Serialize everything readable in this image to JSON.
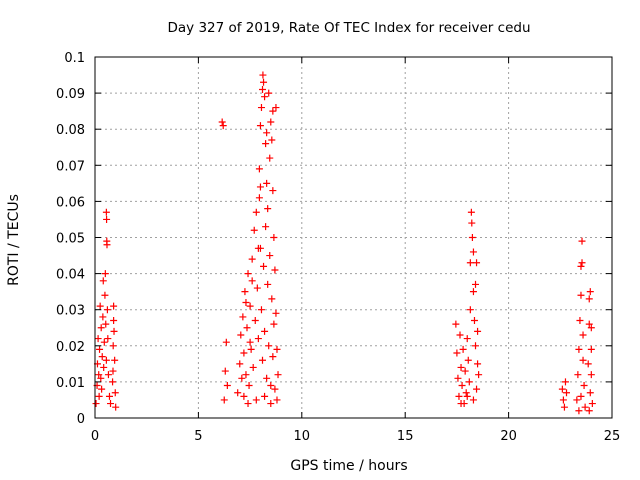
{
  "chart_data": {
    "type": "scatter",
    "title": "Day 327 of 2019, Rate Of TEC Index for receiver cedu",
    "xlabel": "GPS time / hours",
    "ylabel": "ROTI / TECUs",
    "xlim": [
      0,
      25
    ],
    "ylim": [
      0,
      0.1
    ],
    "xticks": [
      0,
      5,
      10,
      15,
      20,
      25
    ],
    "yticks": [
      0,
      0.01,
      0.02,
      0.03,
      0.04,
      0.05,
      0.06,
      0.07,
      0.08,
      0.09,
      0.1
    ],
    "xtick_labels": [
      "0",
      "5",
      "10",
      "15",
      "20",
      "25"
    ],
    "ytick_labels": [
      "0",
      "0.01",
      "0.02",
      "0.03",
      "0.04",
      "0.05",
      "0.06",
      "0.07",
      "0.08",
      "0.09",
      "0.1"
    ],
    "grid": true,
    "marker": "+",
    "marker_color": "#ff0000",
    "series": [
      {
        "name": "ROTI",
        "points": [
          [
            0.05,
            0.004
          ],
          [
            0.1,
            0.009
          ],
          [
            0.12,
            0.015
          ],
          [
            0.15,
            0.022
          ],
          [
            0.18,
            0.012
          ],
          [
            0.2,
            0.006
          ],
          [
            0.22,
            0.019
          ],
          [
            0.25,
            0.031
          ],
          [
            0.28,
            0.011
          ],
          [
            0.3,
            0.025
          ],
          [
            0.32,
            0.008
          ],
          [
            0.35,
            0.017
          ],
          [
            0.38,
            0.028
          ],
          [
            0.4,
            0.038
          ],
          [
            0.42,
            0.014
          ],
          [
            0.45,
            0.021
          ],
          [
            0.48,
            0.034
          ],
          [
            0.5,
            0.04
          ],
          [
            0.52,
            0.026
          ],
          [
            0.55,
            0.016
          ],
          [
            0.55,
            0.057
          ],
          [
            0.56,
            0.055
          ],
          [
            0.57,
            0.049
          ],
          [
            0.58,
            0.048
          ],
          [
            0.6,
            0.03
          ],
          [
            0.62,
            0.022
          ],
          [
            0.65,
            0.012
          ],
          [
            0.7,
            0.006
          ],
          [
            0.75,
            0.004
          ],
          [
            0.85,
            0.01
          ],
          [
            0.88,
            0.02
          ],
          [
            0.9,
            0.031
          ],
          [
            0.92,
            0.024
          ],
          [
            0.95,
            0.016
          ],
          [
            0.98,
            0.007
          ],
          [
            1.0,
            0.003
          ],
          [
            0.9,
            0.027
          ],
          [
            0.87,
            0.013
          ],
          [
            6.15,
            0.082
          ],
          [
            6.2,
            0.081
          ],
          [
            6.25,
            0.005
          ],
          [
            6.3,
            0.013
          ],
          [
            6.35,
            0.021
          ],
          [
            6.4,
            0.009
          ],
          [
            6.9,
            0.007
          ],
          [
            7.0,
            0.015
          ],
          [
            7.05,
            0.023
          ],
          [
            7.1,
            0.011
          ],
          [
            7.15,
            0.028
          ],
          [
            7.2,
            0.018
          ],
          [
            7.25,
            0.035
          ],
          [
            7.3,
            0.012
          ],
          [
            7.35,
            0.025
          ],
          [
            7.4,
            0.04
          ],
          [
            7.45,
            0.009
          ],
          [
            7.5,
            0.031
          ],
          [
            7.55,
            0.019
          ],
          [
            7.6,
            0.044
          ],
          [
            7.65,
            0.014
          ],
          [
            7.7,
            0.052
          ],
          [
            7.75,
            0.027
          ],
          [
            7.8,
            0.057
          ],
          [
            7.85,
            0.036
          ],
          [
            7.9,
            0.022
          ],
          [
            7.95,
            0.061
          ],
          [
            7.95,
            0.069
          ],
          [
            8.0,
            0.081
          ],
          [
            8.0,
            0.047
          ],
          [
            8.05,
            0.086
          ],
          [
            8.05,
            0.03
          ],
          [
            8.1,
            0.091
          ],
          [
            8.1,
            0.016
          ],
          [
            8.12,
            0.095
          ],
          [
            8.15,
            0.093
          ],
          [
            8.15,
            0.042
          ],
          [
            8.2,
            0.089
          ],
          [
            8.2,
            0.024
          ],
          [
            8.25,
            0.076
          ],
          [
            8.25,
            0.053
          ],
          [
            8.3,
            0.065
          ],
          [
            8.3,
            0.011
          ],
          [
            8.35,
            0.058
          ],
          [
            8.35,
            0.037
          ],
          [
            8.4,
            0.09
          ],
          [
            8.4,
            0.02
          ],
          [
            8.45,
            0.072
          ],
          [
            8.45,
            0.045
          ],
          [
            8.5,
            0.082
          ],
          [
            8.5,
            0.009
          ],
          [
            8.55,
            0.077
          ],
          [
            8.55,
            0.033
          ],
          [
            8.6,
            0.063
          ],
          [
            8.6,
            0.017
          ],
          [
            8.65,
            0.05
          ],
          [
            8.65,
            0.026
          ],
          [
            8.7,
            0.041
          ],
          [
            8.7,
            0.008
          ],
          [
            8.75,
            0.086
          ],
          [
            8.75,
            0.029
          ],
          [
            8.8,
            0.019
          ],
          [
            8.85,
            0.012
          ],
          [
            8.6,
            0.085
          ],
          [
            8.3,
            0.079
          ],
          [
            8.0,
            0.064
          ],
          [
            7.9,
            0.047
          ],
          [
            7.6,
            0.038
          ],
          [
            7.3,
            0.032
          ],
          [
            7.2,
            0.006
          ],
          [
            7.4,
            0.004
          ],
          [
            7.8,
            0.005
          ],
          [
            8.2,
            0.006
          ],
          [
            8.5,
            0.004
          ],
          [
            8.8,
            0.005
          ],
          [
            7.5,
            0.021
          ],
          [
            17.45,
            0.026
          ],
          [
            17.5,
            0.018
          ],
          [
            17.55,
            0.011
          ],
          [
            17.6,
            0.006
          ],
          [
            17.65,
            0.023
          ],
          [
            17.7,
            0.014
          ],
          [
            17.75,
            0.009
          ],
          [
            17.8,
            0.019
          ],
          [
            17.85,
            0.004
          ],
          [
            17.9,
            0.013
          ],
          [
            17.95,
            0.007
          ],
          [
            18.0,
            0.022
          ],
          [
            18.05,
            0.016
          ],
          [
            18.1,
            0.01
          ],
          [
            18.15,
            0.03
          ],
          [
            18.15,
            0.043
          ],
          [
            18.2,
            0.057
          ],
          [
            18.22,
            0.054
          ],
          [
            18.25,
            0.05
          ],
          [
            18.3,
            0.046
          ],
          [
            18.3,
            0.035
          ],
          [
            18.35,
            0.027
          ],
          [
            18.4,
            0.037
          ],
          [
            18.45,
            0.043
          ],
          [
            18.5,
            0.024
          ],
          [
            18.5,
            0.015
          ],
          [
            18.45,
            0.008
          ],
          [
            18.55,
            0.012
          ],
          [
            18.3,
            0.005
          ],
          [
            18.0,
            0.006
          ],
          [
            17.7,
            0.004
          ],
          [
            18.4,
            0.02
          ],
          [
            22.6,
            0.008
          ],
          [
            22.65,
            0.005
          ],
          [
            22.7,
            0.003
          ],
          [
            22.75,
            0.01
          ],
          [
            22.8,
            0.007
          ],
          [
            23.3,
            0.005
          ],
          [
            23.35,
            0.012
          ],
          [
            23.4,
            0.019
          ],
          [
            23.45,
            0.027
          ],
          [
            23.5,
            0.034
          ],
          [
            23.5,
            0.042
          ],
          [
            23.55,
            0.049
          ],
          [
            23.55,
            0.043
          ],
          [
            23.6,
            0.023
          ],
          [
            23.6,
            0.016
          ],
          [
            23.65,
            0.009
          ],
          [
            23.7,
            0.003
          ],
          [
            23.5,
            0.006
          ],
          [
            23.4,
            0.002
          ],
          [
            23.9,
            0.026
          ],
          [
            23.9,
            0.033
          ],
          [
            23.95,
            0.035
          ],
          [
            24.0,
            0.019
          ],
          [
            24.0,
            0.012
          ],
          [
            23.95,
            0.007
          ],
          [
            24.05,
            0.004
          ],
          [
            23.9,
            0.002
          ],
          [
            24.0,
            0.025
          ],
          [
            23.85,
            0.015
          ]
        ]
      }
    ]
  }
}
